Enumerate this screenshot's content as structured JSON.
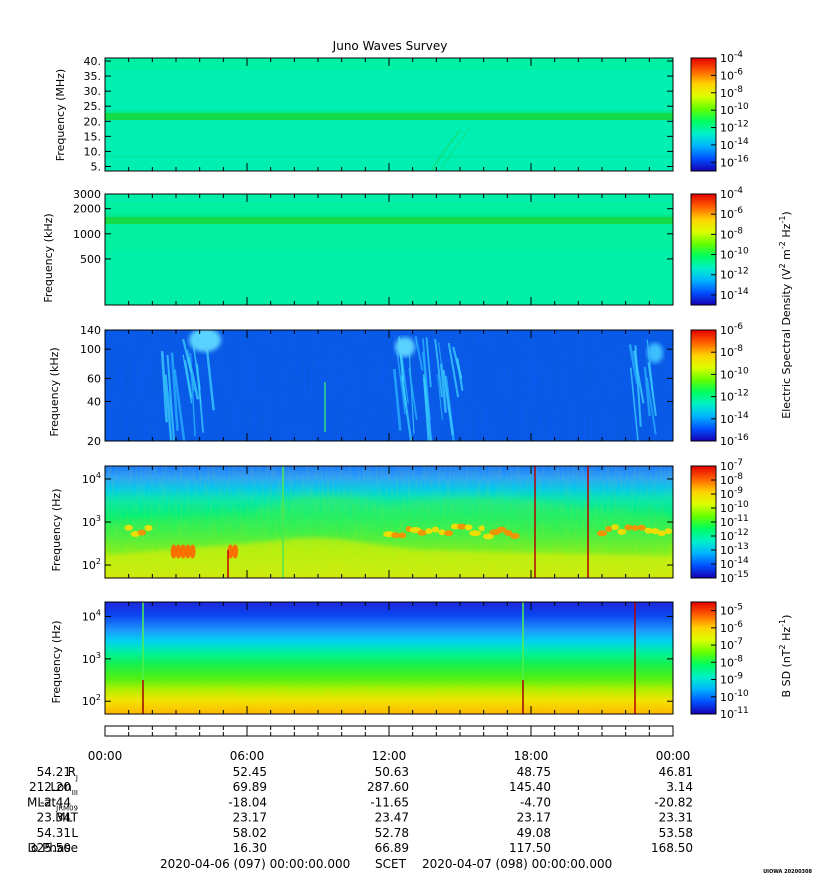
{
  "title": "Juno Waves Survey",
  "colors": {
    "colormap": [
      "#1400b4",
      "#0050ff",
      "#00b4ff",
      "#00f0c8",
      "#00ff60",
      "#64ff00",
      "#dcff00",
      "#ffd200",
      "#ff6400",
      "#e60000"
    ]
  },
  "chart_data": [
    {
      "type": "heatmap",
      "panel": 1,
      "ylabel": "Frequency (MHz)",
      "ylim": [
        3.5,
        41
      ],
      "yscale": "linear",
      "yticks": [
        5,
        10,
        15,
        20,
        25,
        30,
        35,
        40
      ],
      "ytick_labels": [
        "5.",
        "10.",
        "15.",
        "20.",
        "25.",
        "30.",
        "35.",
        "40."
      ],
      "colorbar": {
        "label": "",
        "scale": "log",
        "range": [
          -17,
          -4
        ],
        "ticks": [
          -16,
          -14,
          -12,
          -10,
          -8,
          -6,
          -4
        ]
      },
      "features": [
        {
          "description": "narrowband emission",
          "frequency": 21.5,
          "log_level": -12
        }
      ]
    },
    {
      "type": "heatmap",
      "panel": 2,
      "ylabel": "Frequency (kHz)",
      "ylim": [
        140,
        3000
      ],
      "yscale": "log",
      "yticks": [
        500,
        1000,
        2000,
        3000
      ],
      "ytick_labels": [
        "500",
        "1000",
        "2000",
        "3000"
      ],
      "colorbar": {
        "label": "Electric Spectral Density (V^2 m^-2 Hz^-1)",
        "scale": "log",
        "range": [
          -15,
          -4
        ],
        "ticks": [
          -14,
          -12,
          -10,
          -8,
          -6,
          -4
        ]
      },
      "features": [
        {
          "description": "narrowband emission",
          "frequency": 1500,
          "log_level": -12
        }
      ]
    },
    {
      "type": "heatmap",
      "panel": 3,
      "ylabel": "Frequency (kHz)",
      "ylim": [
        20,
        140
      ],
      "yscale": "log",
      "yticks": [
        20,
        40,
        60,
        100,
        140
      ],
      "ytick_labels": [
        "20",
        "40",
        "60",
        "100",
        "140"
      ],
      "colorbar": {
        "label": "",
        "scale": "log",
        "range": [
          -16,
          -6
        ],
        "ticks": [
          -16,
          -14,
          -12,
          -10,
          -8,
          -6
        ]
      },
      "features": [
        {
          "description": "bursty emission",
          "time_hours": [
            2.4,
            4.4
          ]
        },
        {
          "description": "bursty emission",
          "time_hours": [
            12.2,
            15.0
          ]
        },
        {
          "description": "bursty emission",
          "time_hours": [
            22.1,
            23.0
          ]
        }
      ]
    },
    {
      "type": "heatmap",
      "panel": 4,
      "ylabel": "Frequency (Hz)",
      "ylim": [
        50,
        20000
      ],
      "yscale": "log",
      "yticks": [
        100,
        1000,
        10000
      ],
      "ytick_labels": [
        "10^2",
        "10^3",
        "10^4"
      ],
      "colorbar": {
        "label": "",
        "scale": "log",
        "range": [
          -15,
          -7
        ],
        "ticks": [
          -15,
          -14,
          -13,
          -12,
          -11,
          -10,
          -9,
          -8,
          -7
        ]
      },
      "features": [
        {
          "description": "narrowband emission",
          "frequency": 600,
          "log_level": -9
        },
        {
          "description": "spike",
          "time_hours": 5.1
        },
        {
          "description": "spike",
          "time_hours": 17.95
        },
        {
          "description": "spike",
          "time_hours": 20.2
        }
      ]
    },
    {
      "type": "heatmap",
      "panel": 5,
      "ylabel": "Frequency (Hz)",
      "ylim": [
        50,
        22000
      ],
      "yscale": "log",
      "yticks": [
        100,
        1000,
        10000
      ],
      "ytick_labels": [
        "10^2",
        "10^3",
        "10^4"
      ],
      "colorbar": {
        "label": "B SD (nT^2 Hz^-1)",
        "scale": "log",
        "range": [
          -11,
          -4.5
        ],
        "ticks": [
          -11,
          -10,
          -9,
          -8,
          -7,
          -6,
          -5
        ]
      },
      "features": [
        {
          "description": "spike",
          "time_hours": 1.6
        },
        {
          "description": "spike",
          "time_hours": 17.5
        },
        {
          "description": "spike",
          "time_hours": 22.4
        }
      ]
    }
  ],
  "time_axis": {
    "xlim_hours": [
      0,
      24
    ],
    "labels": [
      "00:00",
      "06:00",
      "12:00",
      "18:00",
      "00:00"
    ],
    "label_hours": [
      0,
      6,
      12,
      18,
      24
    ]
  },
  "ephemeris": {
    "rows": [
      {
        "label": "R",
        "sub": "J",
        "values": [
          "54.21",
          "52.45",
          "50.63",
          "48.75",
          "46.81"
        ]
      },
      {
        "label": "Lon",
        "sub": "III",
        "values": [
          "212.20",
          "69.89",
          "287.60",
          "145.40",
          "3.14"
        ]
      },
      {
        "label": "MLat",
        "sub": "JRM09",
        "values": [
          "-2.44",
          "-18.04",
          "-11.65",
          "-4.70",
          "-20.82"
        ]
      },
      {
        "label": "MLT",
        "sub": "",
        "values": [
          "23.34",
          "23.17",
          "23.47",
          "23.17",
          "23.31"
        ]
      },
      {
        "label": "L",
        "sub": "",
        "values": [
          "54.31",
          "58.02",
          "52.78",
          "49.08",
          "53.58"
        ]
      },
      {
        "label": "Io Phase",
        "sub": "",
        "values": [
          "325.50",
          "16.30",
          "66.89",
          "117.50",
          "168.50"
        ]
      }
    ]
  },
  "footer": {
    "start": "2020-04-06 (097) 00:00:00.000",
    "mid": "SCET",
    "end": "2020-04-07 (098) 00:00:00.000",
    "corner": "UIOWA 20200308"
  }
}
